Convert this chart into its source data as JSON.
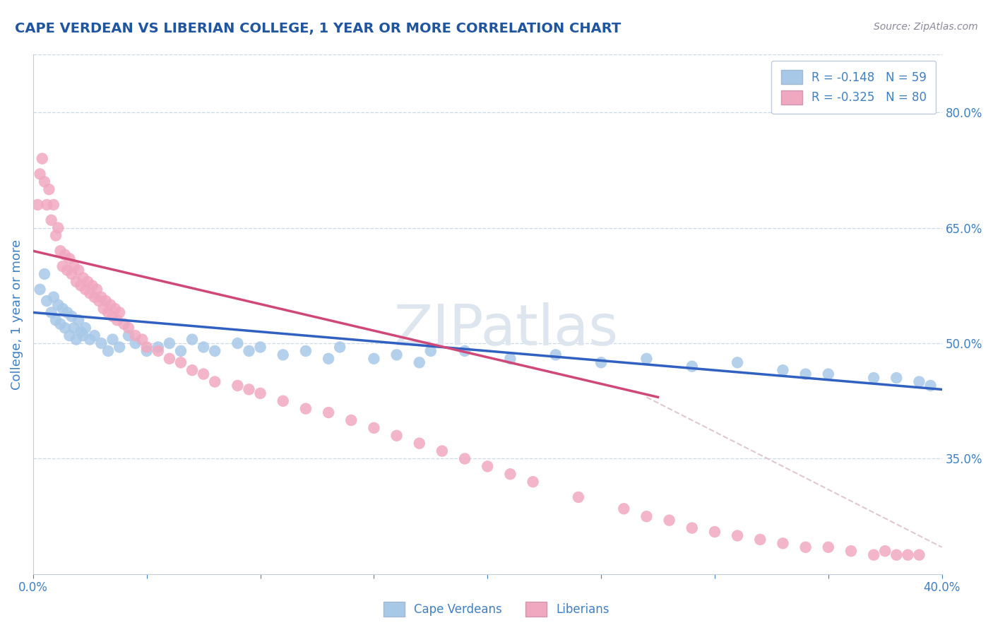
{
  "title": "CAPE VERDEAN VS LIBERIAN COLLEGE, 1 YEAR OR MORE CORRELATION CHART",
  "source_text": "Source: ZipAtlas.com",
  "ylabel": "College, 1 year or more",
  "legend_bottom": [
    "Cape Verdeans",
    "Liberians"
  ],
  "watermark": "ZIPatlas",
  "blue_R": -0.148,
  "blue_N": 59,
  "pink_R": -0.325,
  "pink_N": 80,
  "blue_color": "#a8c8e8",
  "pink_color": "#f0a8c0",
  "blue_line_color": "#3060c0",
  "pink_line_color": "#d04878",
  "dashed_line_color": "#e0c8d0",
  "background_color": "#ffffff",
  "grid_color": "#c8dae8",
  "title_color": "#2055a0",
  "axis_color": "#4080c0",
  "watermark_color": "#dde5ee",
  "xlim": [
    0.0,
    0.4
  ],
  "ylim": [
    0.2,
    0.875
  ],
  "ytick_positions": [
    0.35,
    0.5,
    0.65,
    0.8
  ],
  "ytick_labels": [
    "35.0%",
    "50.0%",
    "65.0%",
    "80.0%"
  ],
  "blue_scatter_x": [
    0.003,
    0.005,
    0.006,
    0.008,
    0.009,
    0.01,
    0.011,
    0.012,
    0.013,
    0.014,
    0.015,
    0.016,
    0.017,
    0.018,
    0.019,
    0.02,
    0.021,
    0.022,
    0.023,
    0.025,
    0.027,
    0.03,
    0.033,
    0.035,
    0.038,
    0.042,
    0.045,
    0.05,
    0.055,
    0.06,
    0.065,
    0.07,
    0.075,
    0.08,
    0.09,
    0.095,
    0.1,
    0.11,
    0.12,
    0.13,
    0.135,
    0.15,
    0.16,
    0.17,
    0.19,
    0.21,
    0.23,
    0.25,
    0.27,
    0.29,
    0.31,
    0.33,
    0.35,
    0.37,
    0.38,
    0.39,
    0.395,
    0.175,
    0.34
  ],
  "blue_scatter_y": [
    0.57,
    0.59,
    0.555,
    0.54,
    0.56,
    0.53,
    0.55,
    0.525,
    0.545,
    0.52,
    0.54,
    0.51,
    0.535,
    0.52,
    0.505,
    0.53,
    0.515,
    0.51,
    0.52,
    0.505,
    0.51,
    0.5,
    0.49,
    0.505,
    0.495,
    0.51,
    0.5,
    0.49,
    0.495,
    0.5,
    0.49,
    0.505,
    0.495,
    0.49,
    0.5,
    0.49,
    0.495,
    0.485,
    0.49,
    0.48,
    0.495,
    0.48,
    0.485,
    0.475,
    0.49,
    0.48,
    0.485,
    0.475,
    0.48,
    0.47,
    0.475,
    0.465,
    0.46,
    0.455,
    0.455,
    0.45,
    0.445,
    0.49,
    0.46
  ],
  "pink_scatter_x": [
    0.002,
    0.003,
    0.004,
    0.005,
    0.006,
    0.007,
    0.008,
    0.009,
    0.01,
    0.011,
    0.012,
    0.013,
    0.014,
    0.015,
    0.016,
    0.017,
    0.018,
    0.019,
    0.02,
    0.021,
    0.022,
    0.023,
    0.024,
    0.025,
    0.026,
    0.027,
    0.028,
    0.029,
    0.03,
    0.031,
    0.032,
    0.033,
    0.034,
    0.035,
    0.036,
    0.037,
    0.038,
    0.04,
    0.042,
    0.045,
    0.048,
    0.05,
    0.055,
    0.06,
    0.065,
    0.07,
    0.075,
    0.08,
    0.09,
    0.095,
    0.1,
    0.11,
    0.12,
    0.13,
    0.14,
    0.15,
    0.16,
    0.17,
    0.18,
    0.19,
    0.2,
    0.21,
    0.22,
    0.24,
    0.26,
    0.27,
    0.28,
    0.29,
    0.3,
    0.31,
    0.32,
    0.33,
    0.34,
    0.35,
    0.36,
    0.37,
    0.375,
    0.38,
    0.385,
    0.39
  ],
  "pink_scatter_y": [
    0.68,
    0.72,
    0.74,
    0.71,
    0.68,
    0.7,
    0.66,
    0.68,
    0.64,
    0.65,
    0.62,
    0.6,
    0.615,
    0.595,
    0.61,
    0.59,
    0.6,
    0.58,
    0.595,
    0.575,
    0.585,
    0.57,
    0.58,
    0.565,
    0.575,
    0.56,
    0.57,
    0.555,
    0.56,
    0.545,
    0.555,
    0.54,
    0.55,
    0.535,
    0.545,
    0.53,
    0.54,
    0.525,
    0.52,
    0.51,
    0.505,
    0.495,
    0.49,
    0.48,
    0.475,
    0.465,
    0.46,
    0.45,
    0.445,
    0.44,
    0.435,
    0.425,
    0.415,
    0.41,
    0.4,
    0.39,
    0.38,
    0.37,
    0.36,
    0.35,
    0.34,
    0.33,
    0.32,
    0.3,
    0.285,
    0.275,
    0.27,
    0.26,
    0.255,
    0.25,
    0.245,
    0.24,
    0.235,
    0.235,
    0.23,
    0.225,
    0.23,
    0.225,
    0.225,
    0.225
  ]
}
